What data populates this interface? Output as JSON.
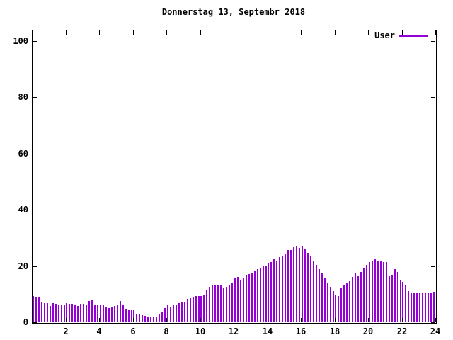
{
  "window": {
    "background": "#ffffff",
    "text_color": "#000000"
  },
  "title": "Donnerstag 13, Septembr 2018",
  "legend": {
    "label": "User",
    "line_color": "#9400d3"
  },
  "chart_data": {
    "type": "bar",
    "style": "impulses (gnuplot-like vertical lines, one per 10 minutes)",
    "title": "Donnerstag 13, Septembr 2018",
    "xlabel": "",
    "ylabel": "",
    "xlim": [
      0,
      24
    ],
    "ylim": [
      0,
      104
    ],
    "x_ticks": [
      2,
      4,
      6,
      8,
      10,
      12,
      14,
      16,
      18,
      20,
      22,
      24
    ],
    "y_ticks": [
      0,
      20,
      40,
      60,
      80,
      100
    ],
    "grid": false,
    "legend_position": "top-right",
    "bar_color": "#9400d3",
    "interval_minutes": 10,
    "series": [
      {
        "name": "User",
        "color": "#9400d3",
        "values": [
          9.2,
          9.0,
          9.1,
          7.1,
          6.9,
          6.7,
          5.7,
          6.7,
          6.6,
          6.1,
          6.3,
          6.3,
          6.7,
          6.5,
          6.6,
          6.3,
          5.9,
          6.5,
          6.6,
          6.1,
          7.5,
          7.8,
          6.3,
          6.2,
          6.1,
          6.0,
          5.5,
          5.0,
          5.4,
          5.8,
          6.2,
          7.6,
          6.0,
          4.8,
          4.6,
          4.4,
          4.2,
          3.0,
          2.8,
          2.6,
          2.2,
          2.0,
          1.9,
          1.8,
          2.0,
          2.8,
          3.8,
          5.0,
          6.2,
          5.6,
          6.1,
          6.3,
          6.7,
          7.1,
          7.4,
          8.2,
          8.6,
          9.0,
          9.2,
          9.2,
          9.3,
          9.5,
          11.3,
          12.6,
          13.2,
          13.4,
          13.3,
          13.2,
          12.2,
          12.6,
          13.4,
          14.2,
          15.5,
          16.0,
          15.1,
          15.5,
          16.8,
          17.2,
          17.6,
          18.5,
          19.0,
          19.3,
          19.8,
          20.2,
          21.0,
          21.5,
          22.3,
          22.0,
          23.1,
          23.5,
          24.5,
          25.6,
          25.7,
          26.8,
          27.3,
          26.5,
          27.2,
          26.0,
          24.8,
          23.5,
          22.0,
          20.5,
          19.0,
          17.3,
          15.8,
          14.2,
          12.6,
          11.0,
          9.8,
          9.4,
          12.0,
          13.2,
          13.9,
          14.7,
          16.0,
          17.4,
          16.5,
          18.0,
          19.5,
          20.5,
          21.5,
          22.0,
          22.7,
          22.0,
          21.8,
          21.5,
          21.3,
          16.4,
          16.8,
          18.9,
          17.8,
          15.1,
          14.3,
          13.4,
          11.0,
          10.4,
          10.5,
          10.3,
          10.5,
          10.4,
          10.5,
          10.4,
          10.5,
          10.9
        ]
      }
    ]
  }
}
